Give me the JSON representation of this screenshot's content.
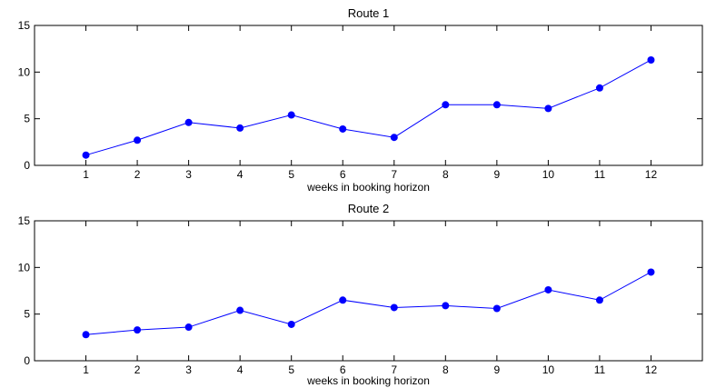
{
  "chart_data": [
    {
      "type": "line",
      "title": "Route 1",
      "xlabel": "weeks in booking horizon",
      "ylabel": "",
      "x": [
        1,
        2,
        3,
        4,
        5,
        6,
        7,
        8,
        9,
        10,
        11,
        12
      ],
      "xticks": [
        "1",
        "2",
        "3",
        "4",
        "5",
        "6",
        "7",
        "8",
        "9",
        "10",
        "11",
        "12"
      ],
      "xlim": [
        0,
        13
      ],
      "ylim": [
        0,
        15
      ],
      "yticks": [
        "0",
        "5",
        "10",
        "15"
      ],
      "grid": false,
      "series": [
        {
          "values": [
            1.1,
            2.7,
            4.6,
            4.0,
            5.4,
            3.9,
            3.0,
            6.5,
            6.5,
            6.1,
            8.3,
            11.3
          ]
        }
      ]
    },
    {
      "type": "line",
      "title": "Route 2",
      "xlabel": "weeks in booking horizon",
      "ylabel": "",
      "x": [
        1,
        2,
        3,
        4,
        5,
        6,
        7,
        8,
        9,
        10,
        11,
        12
      ],
      "xticks": [
        "1",
        "2",
        "3",
        "4",
        "5",
        "6",
        "7",
        "8",
        "9",
        "10",
        "11",
        "12"
      ],
      "xlim": [
        0,
        13
      ],
      "ylim": [
        0,
        15
      ],
      "yticks": [
        "0",
        "5",
        "10",
        "15"
      ],
      "grid": false,
      "series": [
        {
          "values": [
            2.8,
            3.3,
            3.6,
            5.4,
            3.9,
            6.5,
            5.7,
            5.9,
            5.6,
            7.6,
            6.5,
            9.5
          ]
        }
      ]
    }
  ],
  "colors": {
    "series": "#0000ff",
    "axes": "#000000",
    "background": "#ffffff"
  }
}
